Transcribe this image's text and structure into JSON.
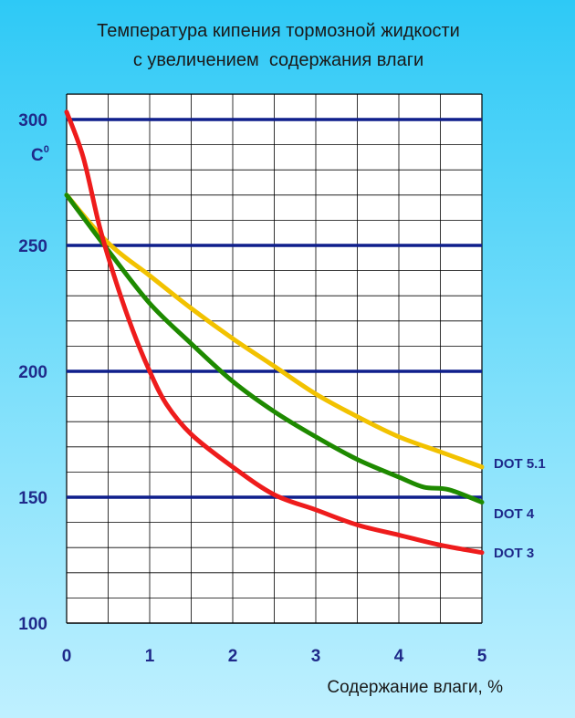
{
  "chart_data": {
    "type": "line",
    "title_line1": "Температура кипения тормозной жидкости",
    "title_line2": "с увеличением  содержания влаги",
    "xlabel": "Содержание влаги, %",
    "ylabel_unit": "C",
    "ylabel_unit_sup": "0",
    "xlim": [
      0,
      5
    ],
    "ylim": [
      100,
      300
    ],
    "x_ticks": [
      "0",
      "1",
      "2",
      "3",
      "4",
      "5"
    ],
    "y_ticks": [
      "100",
      "150",
      "200",
      "250",
      "300"
    ],
    "grid": true,
    "series": [
      {
        "name": "DOT 5.1",
        "color": "#f2c200",
        "x": [
          0,
          0.5,
          1,
          1.5,
          2,
          2.5,
          3,
          3.5,
          4,
          4.5,
          5
        ],
        "y": [
          270,
          251,
          238,
          225,
          213,
          202,
          191,
          182,
          174,
          168,
          162
        ]
      },
      {
        "name": "DOT 4",
        "color": "#1e8a00",
        "x": [
          0,
          0.5,
          1,
          1.5,
          2,
          2.5,
          3,
          3.5,
          4,
          4.3,
          4.6,
          5
        ],
        "y": [
          270,
          248,
          227,
          211,
          196,
          184,
          174,
          165,
          158,
          154,
          153,
          148
        ]
      },
      {
        "name": "DOT 3",
        "color": "#ee1c1c",
        "x": [
          0,
          0.2,
          0.4,
          0.6,
          0.8,
          1,
          1.2,
          1.5,
          2,
          2.5,
          3,
          3.5,
          4,
          4.5,
          5
        ],
        "y": [
          303,
          285,
          257,
          235,
          216,
          200,
          187,
          175,
          162,
          151,
          145,
          139,
          135,
          131,
          128
        ]
      }
    ]
  }
}
